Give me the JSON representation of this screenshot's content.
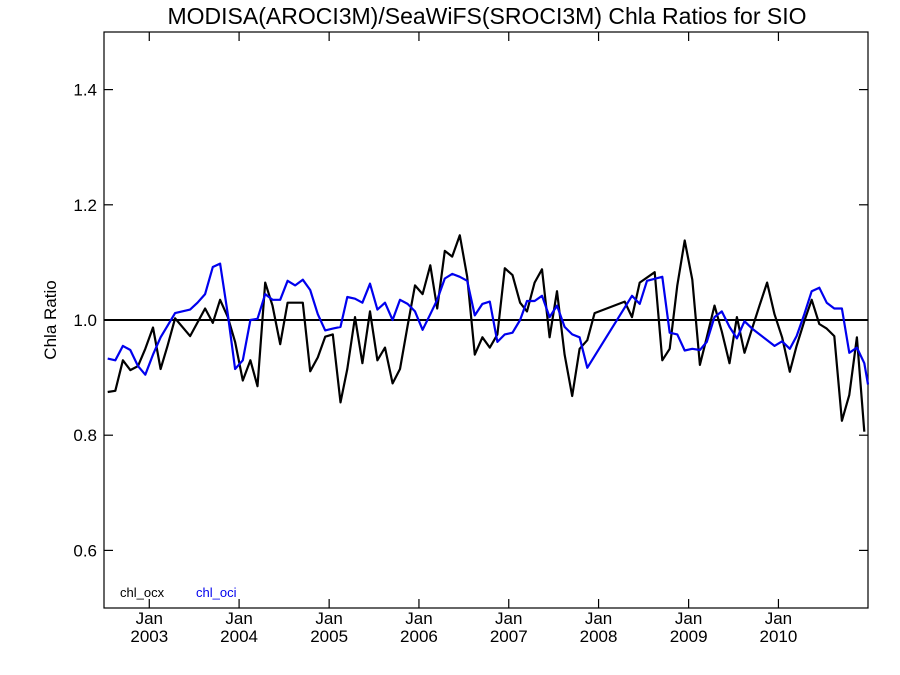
{
  "chart_data": {
    "type": "line",
    "title": "MODISA(AROCI3M)/SeaWiFS(SROCI3M)  Chla Ratios for SIO",
    "ylabel": "Chla Ratio",
    "xlabel": "",
    "ylim": [
      0.5,
      1.5
    ],
    "xlim": [
      "2002-07-01",
      "2010-12-31"
    ],
    "yticks": [
      0.6,
      0.8,
      1.0,
      1.2,
      1.4
    ],
    "ytick_labels": [
      "0.6",
      "0.8",
      "1.0",
      "1.2",
      "1.4"
    ],
    "xticks": [
      {
        "month": "Jan",
        "year": "2003",
        "date": "2003-01-01"
      },
      {
        "month": "Jan",
        "year": "2004",
        "date": "2004-01-01"
      },
      {
        "month": "Jan",
        "year": "2005",
        "date": "2005-01-01"
      },
      {
        "month": "Jan",
        "year": "2006",
        "date": "2006-01-01"
      },
      {
        "month": "Jan",
        "year": "2007",
        "date": "2007-01-01"
      },
      {
        "month": "Jan",
        "year": "2008",
        "date": "2008-01-01"
      },
      {
        "month": "Jan",
        "year": "2009",
        "date": "2009-01-01"
      },
      {
        "month": "Jan",
        "year": "2010",
        "date": "2010-01-01"
      }
    ],
    "reference_line": 1.0,
    "legend_position": "bottom-left",
    "series": [
      {
        "name": "chl_ocx",
        "color": "#000000",
        "points": [
          [
            "2002-07-16",
            0.875
          ],
          [
            "2002-08-16",
            0.877
          ],
          [
            "2002-09-16",
            0.93
          ],
          [
            "2002-10-16",
            0.913
          ],
          [
            "2002-11-16",
            0.92
          ],
          [
            "2002-12-16",
            0.95
          ],
          [
            "2003-01-16",
            0.987
          ],
          [
            "2003-02-16",
            0.915
          ],
          [
            "2003-03-16",
            0.955
          ],
          [
            "2003-04-16",
            1.003
          ],
          [
            "2003-06-16",
            0.972
          ],
          [
            "2003-08-16",
            1.02
          ],
          [
            "2003-09-16",
            0.995
          ],
          [
            "2003-10-16",
            1.035
          ],
          [
            "2003-11-16",
            1.005
          ],
          [
            "2003-12-16",
            0.962
          ],
          [
            "2004-01-16",
            0.895
          ],
          [
            "2004-02-16",
            0.93
          ],
          [
            "2004-03-16",
            0.885
          ],
          [
            "2004-04-16",
            1.065
          ],
          [
            "2004-05-16",
            1.025
          ],
          [
            "2004-06-16",
            0.958
          ],
          [
            "2004-07-16",
            1.03
          ],
          [
            "2004-09-16",
            1.03
          ],
          [
            "2004-10-16",
            0.911
          ],
          [
            "2004-11-16",
            0.935
          ],
          [
            "2004-12-16",
            0.971
          ],
          [
            "2005-01-16",
            0.975
          ],
          [
            "2005-02-16",
            0.857
          ],
          [
            "2005-03-16",
            0.915
          ],
          [
            "2005-04-16",
            1.005
          ],
          [
            "2005-05-16",
            0.925
          ],
          [
            "2005-06-16",
            1.015
          ],
          [
            "2005-07-16",
            0.93
          ],
          [
            "2005-08-16",
            0.952
          ],
          [
            "2005-09-16",
            0.89
          ],
          [
            "2005-10-16",
            0.915
          ],
          [
            "2005-11-16",
            0.99
          ],
          [
            "2005-12-16",
            1.06
          ],
          [
            "2006-01-16",
            1.045
          ],
          [
            "2006-02-16",
            1.095
          ],
          [
            "2006-03-16",
            1.02
          ],
          [
            "2006-04-16",
            1.12
          ],
          [
            "2006-05-16",
            1.11
          ],
          [
            "2006-06-16",
            1.147
          ],
          [
            "2006-07-16",
            1.075
          ],
          [
            "2006-08-16",
            0.94
          ],
          [
            "2006-09-16",
            0.97
          ],
          [
            "2006-10-16",
            0.952
          ],
          [
            "2006-11-16",
            0.975
          ],
          [
            "2006-12-16",
            1.09
          ],
          [
            "2007-01-16",
            1.078
          ],
          [
            "2007-02-16",
            1.03
          ],
          [
            "2007-03-16",
            1.015
          ],
          [
            "2007-04-16",
            1.065
          ],
          [
            "2007-05-16",
            1.088
          ],
          [
            "2007-06-16",
            0.97
          ],
          [
            "2007-07-16",
            1.05
          ],
          [
            "2007-08-16",
            0.94
          ],
          [
            "2007-09-16",
            0.868
          ],
          [
            "2007-10-16",
            0.95
          ],
          [
            "2007-11-16",
            0.965
          ],
          [
            "2007-12-16",
            1.012
          ],
          [
            "2008-04-16",
            1.032
          ],
          [
            "2008-05-16",
            1.005
          ],
          [
            "2008-06-16",
            1.065
          ],
          [
            "2008-08-16",
            1.083
          ],
          [
            "2008-09-16",
            0.93
          ],
          [
            "2008-10-16",
            0.95
          ],
          [
            "2008-11-16",
            1.06
          ],
          [
            "2008-12-16",
            1.138
          ],
          [
            "2009-01-16",
            1.07
          ],
          [
            "2009-02-16",
            0.922
          ],
          [
            "2009-03-16",
            0.97
          ],
          [
            "2009-04-16",
            1.025
          ],
          [
            "2009-05-16",
            0.98
          ],
          [
            "2009-06-16",
            0.925
          ],
          [
            "2009-07-16",
            1.005
          ],
          [
            "2009-08-16",
            0.943
          ],
          [
            "2009-09-16",
            0.985
          ],
          [
            "2009-10-16",
            1.025
          ],
          [
            "2009-11-16",
            1.065
          ],
          [
            "2009-12-16",
            1.01
          ],
          [
            "2010-01-16",
            0.97
          ],
          [
            "2010-02-16",
            0.91
          ],
          [
            "2010-03-16",
            0.955
          ],
          [
            "2010-04-16",
            0.998
          ],
          [
            "2010-05-16",
            1.035
          ],
          [
            "2010-06-16",
            0.993
          ],
          [
            "2010-07-16",
            0.985
          ],
          [
            "2010-08-16",
            0.972
          ],
          [
            "2010-09-16",
            0.825
          ],
          [
            "2010-10-16",
            0.87
          ],
          [
            "2010-11-16",
            0.97
          ],
          [
            "2010-12-16",
            0.806
          ]
        ]
      },
      {
        "name": "chl_oci",
        "color": "#0000ee",
        "points": [
          [
            "2002-07-16",
            0.933
          ],
          [
            "2002-08-16",
            0.93
          ],
          [
            "2002-09-16",
            0.955
          ],
          [
            "2002-10-16",
            0.948
          ],
          [
            "2002-11-16",
            0.92
          ],
          [
            "2002-12-16",
            0.905
          ],
          [
            "2003-01-16",
            0.94
          ],
          [
            "2003-02-16",
            0.97
          ],
          [
            "2003-03-16",
            0.99
          ],
          [
            "2003-04-16",
            1.012
          ],
          [
            "2003-06-16",
            1.018
          ],
          [
            "2003-07-16",
            1.03
          ],
          [
            "2003-08-16",
            1.045
          ],
          [
            "2003-09-16",
            1.092
          ],
          [
            "2003-10-16",
            1.098
          ],
          [
            "2003-11-16",
            1.01
          ],
          [
            "2003-12-16",
            0.915
          ],
          [
            "2004-01-16",
            0.93
          ],
          [
            "2004-02-16",
            1.0
          ],
          [
            "2004-03-16",
            1.002
          ],
          [
            "2004-04-16",
            1.045
          ],
          [
            "2004-05-16",
            1.035
          ],
          [
            "2004-06-16",
            1.035
          ],
          [
            "2004-07-16",
            1.068
          ],
          [
            "2004-08-16",
            1.06
          ],
          [
            "2004-09-16",
            1.07
          ],
          [
            "2004-10-16",
            1.052
          ],
          [
            "2004-11-16",
            1.01
          ],
          [
            "2004-12-16",
            0.982
          ],
          [
            "2005-01-16",
            0.985
          ],
          [
            "2005-02-16",
            0.988
          ],
          [
            "2005-03-16",
            1.04
          ],
          [
            "2005-04-16",
            1.037
          ],
          [
            "2005-05-16",
            1.03
          ],
          [
            "2005-06-16",
            1.063
          ],
          [
            "2005-07-16",
            1.018
          ],
          [
            "2005-08-16",
            1.03
          ],
          [
            "2005-09-16",
            1.0
          ],
          [
            "2005-10-16",
            1.035
          ],
          [
            "2005-11-16",
            1.028
          ],
          [
            "2005-12-16",
            1.015
          ],
          [
            "2006-01-16",
            0.983
          ],
          [
            "2006-02-16",
            1.01
          ],
          [
            "2006-03-16",
            1.035
          ],
          [
            "2006-04-16",
            1.072
          ],
          [
            "2006-05-16",
            1.08
          ],
          [
            "2006-06-16",
            1.075
          ],
          [
            "2006-07-16",
            1.068
          ],
          [
            "2006-08-16",
            1.008
          ],
          [
            "2006-09-16",
            1.028
          ],
          [
            "2006-10-16",
            1.032
          ],
          [
            "2006-11-16",
            0.962
          ],
          [
            "2006-12-16",
            0.975
          ],
          [
            "2007-01-16",
            0.978
          ],
          [
            "2007-02-16",
            1.0
          ],
          [
            "2007-03-16",
            1.033
          ],
          [
            "2007-04-16",
            1.033
          ],
          [
            "2007-05-16",
            1.042
          ],
          [
            "2007-06-16",
            1.005
          ],
          [
            "2007-07-16",
            1.025
          ],
          [
            "2007-08-16",
            0.988
          ],
          [
            "2007-09-16",
            0.975
          ],
          [
            "2007-10-16",
            0.97
          ],
          [
            "2007-11-16",
            0.917
          ],
          [
            "2008-05-16",
            1.042
          ],
          [
            "2008-06-16",
            1.028
          ],
          [
            "2008-07-16",
            1.068
          ],
          [
            "2008-09-16",
            1.075
          ],
          [
            "2008-10-16",
            0.978
          ],
          [
            "2008-11-16",
            0.975
          ],
          [
            "2008-12-16",
            0.947
          ],
          [
            "2009-01-16",
            0.95
          ],
          [
            "2009-02-16",
            0.948
          ],
          [
            "2009-03-16",
            0.962
          ],
          [
            "2009-04-16",
            1.005
          ],
          [
            "2009-05-16",
            1.015
          ],
          [
            "2009-06-16",
            0.988
          ],
          [
            "2009-07-16",
            0.968
          ],
          [
            "2009-08-16",
            0.998
          ],
          [
            "2009-09-16",
            0.985
          ],
          [
            "2009-12-16",
            0.955
          ],
          [
            "2010-01-16",
            0.963
          ],
          [
            "2010-02-16",
            0.95
          ],
          [
            "2010-03-16",
            0.972
          ],
          [
            "2010-04-16",
            1.01
          ],
          [
            "2010-05-16",
            1.05
          ],
          [
            "2010-06-16",
            1.056
          ],
          [
            "2010-07-16",
            1.03
          ],
          [
            "2010-08-16",
            1.02
          ],
          [
            "2010-09-16",
            1.02
          ],
          [
            "2010-10-16",
            0.943
          ],
          [
            "2010-11-16",
            0.952
          ],
          [
            "2010-12-16",
            0.925
          ],
          [
            "2010-12-31",
            0.888
          ]
        ]
      }
    ]
  }
}
